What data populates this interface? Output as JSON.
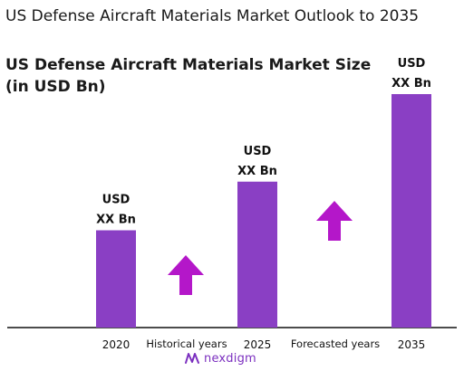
{
  "title": "US Defense Aircraft Materials Market Outlook to 2035",
  "subtitle": "US Defense Aircraft Materials Market Size (in USD Bn)",
  "chart_data": {
    "type": "bar",
    "categories": [
      "2020",
      "2025",
      "2035"
    ],
    "values": [
      1.0,
      1.5,
      2.4
    ],
    "data_labels": [
      [
        "USD",
        "XX Bn"
      ],
      [
        "USD",
        "XX Bn"
      ],
      [
        "USD",
        "XX Bn"
      ]
    ],
    "period_labels": [
      "Historical years",
      "Forecasted years"
    ],
    "ylim": [
      0,
      2.4
    ],
    "grid": false,
    "legend": "none"
  },
  "colors": {
    "bar": "#8a3fc4",
    "arrow": "#b417c9",
    "axis": "#111111",
    "brand": "#7b2fbf"
  },
  "brand": {
    "name": "nexdigm",
    "icon": "nexdigm-logo-icon"
  }
}
